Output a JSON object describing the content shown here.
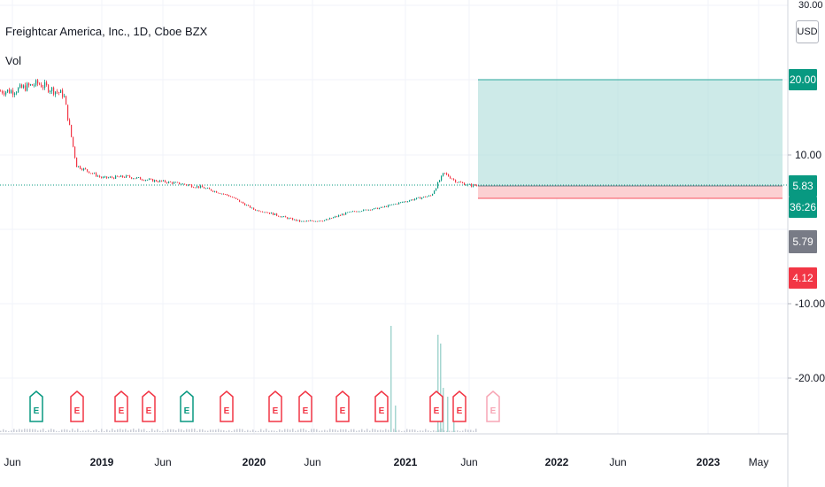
{
  "header": {
    "title": "Freightcar America, Inc., 1D, Cboe BZX",
    "volume_label": "Vol"
  },
  "price_axis": {
    "unit_button": "USD",
    "top_partial_tick": "30.00",
    "ticks": [
      "10.00",
      "-10.00",
      "-20.00"
    ],
    "tags": [
      {
        "label": "20.00",
        "color": "#089981",
        "kind": "target"
      },
      {
        "label": "5.83",
        "color": "#089981",
        "kind": "last-price"
      },
      {
        "label": "36:26",
        "color": "#089981",
        "kind": "countdown"
      },
      {
        "label": "5.79",
        "color": "#787b86",
        "kind": "entry"
      },
      {
        "label": "4.12",
        "color": "#f23645",
        "kind": "stop"
      }
    ]
  },
  "time_axis": {
    "labels": [
      "Jun",
      "2019",
      "Jun",
      "2020",
      "Jun",
      "2021",
      "Jun",
      "2022",
      "Jun",
      "2023",
      "May"
    ],
    "bold": [
      false,
      true,
      false,
      true,
      false,
      true,
      false,
      true,
      false,
      true,
      false
    ]
  },
  "earnings_markers": {
    "letter": "E",
    "colors": [
      "#089981",
      "#f23645",
      "#f23645",
      "#f23645",
      "#089981",
      "#f23645",
      "#f23645",
      "#f23645",
      "#f23645",
      "#f23645",
      "#f23645",
      "#f23645",
      "#f7a6b5"
    ],
    "filled": [
      false,
      false,
      false,
      false,
      false,
      false,
      false,
      false,
      false,
      false,
      false,
      false,
      false
    ]
  },
  "position_tool": {
    "entry": 5.79,
    "target": 20.0,
    "stop": 4.12,
    "profit_color": "#b2dfdb",
    "loss_color": "#fccbcd"
  },
  "chart_data": {
    "type": "candlestick",
    "symbol": "Freightcar America, Inc.",
    "interval": "1D",
    "exchange": "Cboe BZX",
    "x": [
      "2018-06",
      "2018-08",
      "2018-10",
      "2018-11",
      "2019-01",
      "2019-03",
      "2019-05",
      "2019-07",
      "2019-09",
      "2019-11",
      "2020-01",
      "2020-03",
      "2020-05",
      "2020-07",
      "2020-09",
      "2020-11",
      "2021-01",
      "2021-03",
      "2021-04",
      "2021-05",
      "2021-06"
    ],
    "close": [
      18.5,
      19.5,
      18.0,
      8.5,
      6.8,
      7.0,
      6.5,
      6.1,
      5.6,
      4.5,
      2.8,
      2.3,
      1.9,
      2.0,
      2.6,
      3.0,
      3.8,
      4.5,
      7.5,
      6.3,
      5.83
    ],
    "volume_spikes": [
      {
        "x": "2020-12",
        "label": "spike"
      },
      {
        "x": "2021-04",
        "label": "spike"
      }
    ],
    "last_price": 5.83,
    "current_label": "5.83",
    "yrange": [
      -30,
      30
    ],
    "grid": true,
    "legend": "top-left"
  }
}
